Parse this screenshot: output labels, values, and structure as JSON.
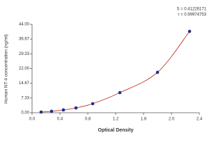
{
  "chart_data": {
    "type": "scatter",
    "annotations": [
      "S = 0.41226171",
      "r = 0.99974753"
    ],
    "x_label": "Optical Density",
    "y_label": "Human NT-4 concentration (ng/ml)",
    "x": [
      0.13,
      0.28,
      0.45,
      0.63,
      0.87,
      1.26,
      1.8,
      2.26
    ],
    "values": [
      0.35,
      0.7,
      1.4,
      2.4,
      4.5,
      10.0,
      20.1,
      40.5
    ],
    "color": "#1f2f8f",
    "fit_color": "#c0392b",
    "fit_line": true,
    "xlim": [
      0,
      2.4
    ],
    "ylim": [
      0,
      44
    ],
    "xticks": [
      {
        "value": 0,
        "label": "0.0"
      },
      0.4,
      0.8,
      1.2,
      1.6,
      {
        "value": 2,
        "label": "2.0"
      },
      2.4
    ],
    "yticks": [
      {
        "value": 0,
        "label": "0.00"
      },
      7.33,
      14.67,
      {
        "value": 22,
        "label": "22.00"
      },
      29.33,
      36.67,
      {
        "value": 44,
        "label": "44.00"
      }
    ]
  }
}
